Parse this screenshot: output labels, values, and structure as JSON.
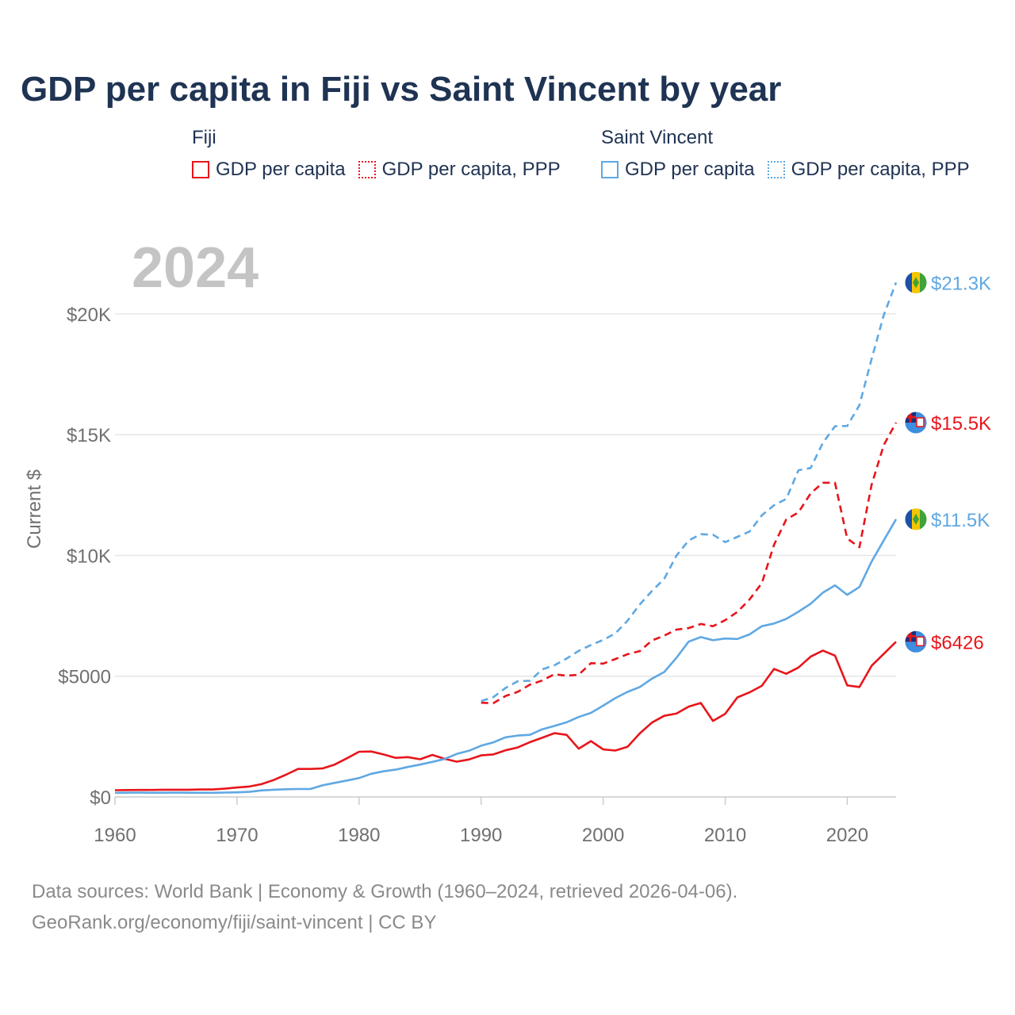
{
  "title": "GDP per capita in Fiji vs Saint Vincent by year",
  "legend": {
    "fiji": {
      "heading": "Fiji",
      "solid": "GDP per capita",
      "dashed": "GDP per capita, PPP"
    },
    "sv": {
      "heading": "Saint Vincent",
      "solid": "GDP per capita",
      "dashed": "GDP per capita, PPP"
    }
  },
  "colors": {
    "fiji": "#e8151b",
    "sv": "#5fa8e3",
    "grid": "#e6e6e6",
    "axis": "#cccccc",
    "tick": "#707070",
    "year": "#c4c4c4"
  },
  "source": {
    "line1": "Data sources: World Bank | Economy & Growth (1960–2024, retrieved 2026-04-06).",
    "line2": "GeoRank.org/economy/fiji/saint-vincent | CC BY"
  },
  "chart_data": {
    "type": "line",
    "title": "GDP per capita in Fiji vs Saint Vincent by year",
    "ylabel": "Current $",
    "xlabel": "",
    "year_label": "2024",
    "xlim": [
      1960,
      2024
    ],
    "ylim": [
      0,
      22000
    ],
    "xticks": [
      {
        "value": 1960,
        "label": "1960"
      },
      {
        "value": 1970,
        "label": "1970"
      },
      {
        "value": 1980,
        "label": "1980"
      },
      {
        "value": 1990,
        "label": "1990"
      },
      {
        "value": 2000,
        "label": "2000"
      },
      {
        "value": 2010,
        "label": "2010"
      },
      {
        "value": 2020,
        "label": "2020"
      }
    ],
    "yticks": [
      {
        "value": 0,
        "label": "$0"
      },
      {
        "value": 5000,
        "label": "$5000"
      },
      {
        "value": 10000,
        "label": "$10K"
      },
      {
        "value": 15000,
        "label": "$15K"
      },
      {
        "value": 20000,
        "label": "$20K"
      }
    ],
    "series": [
      {
        "id": "fiji-gdp",
        "name": "Fiji GDP per capita",
        "country": "fiji",
        "style": "solid",
        "end_label": "$6426",
        "end_value": 6426,
        "flag": "fiji",
        "x": [
          1960,
          1961,
          1962,
          1963,
          1964,
          1965,
          1966,
          1967,
          1968,
          1969,
          1970,
          1971,
          1972,
          1973,
          1974,
          1975,
          1976,
          1977,
          1978,
          1979,
          1980,
          1981,
          1982,
          1983,
          1984,
          1985,
          1986,
          1987,
          1988,
          1989,
          1990,
          1991,
          1992,
          1993,
          1994,
          1995,
          1996,
          1997,
          1998,
          1999,
          2000,
          2001,
          2002,
          2003,
          2004,
          2005,
          2006,
          2007,
          2008,
          2009,
          2010,
          2011,
          2012,
          2013,
          2014,
          2015,
          2016,
          2017,
          2018,
          2019,
          2020,
          2021,
          2022,
          2023,
          2024
        ],
        "y": [
          280,
          285,
          290,
          290,
          300,
          300,
          300,
          310,
          310,
          340,
          390,
          430,
          530,
          700,
          920,
          1160,
          1160,
          1180,
          1340,
          1600,
          1870,
          1880,
          1760,
          1620,
          1650,
          1560,
          1740,
          1580,
          1460,
          1550,
          1720,
          1760,
          1930,
          2050,
          2270,
          2450,
          2640,
          2570,
          2000,
          2310,
          1970,
          1920,
          2080,
          2630,
          3080,
          3360,
          3450,
          3740,
          3890,
          3150,
          3440,
          4120,
          4330,
          4600,
          5300,
          5100,
          5360,
          5810,
          6060,
          5850,
          4620,
          4550,
          5430,
          5930,
          6426
        ]
      },
      {
        "id": "fiji-ppp",
        "name": "Fiji GDP per capita, PPP",
        "country": "fiji",
        "style": "dashed",
        "end_label": "$15.5K",
        "end_value": 15500,
        "flag": "fiji",
        "x": [
          1990,
          1991,
          1992,
          1993,
          1994,
          1995,
          1996,
          1997,
          1998,
          1999,
          2000,
          2001,
          2002,
          2003,
          2004,
          2005,
          2006,
          2007,
          2008,
          2009,
          2010,
          2011,
          2012,
          2013,
          2014,
          2015,
          2016,
          2017,
          2018,
          2019,
          2020,
          2021,
          2022,
          2023,
          2024
        ],
        "y": [
          3900,
          3880,
          4180,
          4350,
          4650,
          4820,
          5080,
          5020,
          5060,
          5540,
          5520,
          5710,
          5910,
          6040,
          6480,
          6680,
          6930,
          6990,
          7160,
          7070,
          7320,
          7660,
          8180,
          8850,
          10440,
          11490,
          11780,
          12570,
          13010,
          13010,
          10700,
          10340,
          12930,
          14580,
          15500
        ]
      },
      {
        "id": "sv-gdp",
        "name": "Saint Vincent GDP per capita",
        "country": "sv",
        "style": "solid",
        "end_label": "$11.5K",
        "end_value": 11500,
        "flag": "sv",
        "x": [
          1960,
          1961,
          1962,
          1963,
          1964,
          1965,
          1966,
          1967,
          1968,
          1969,
          1970,
          1971,
          1972,
          1973,
          1974,
          1975,
          1976,
          1977,
          1978,
          1979,
          1980,
          1981,
          1982,
          1983,
          1984,
          1985,
          1986,
          1987,
          1988,
          1989,
          1990,
          1991,
          1992,
          1993,
          1994,
          1995,
          1996,
          1997,
          1998,
          1999,
          2000,
          2001,
          2002,
          2003,
          2004,
          2005,
          2006,
          2007,
          2008,
          2009,
          2010,
          2011,
          2012,
          2013,
          2014,
          2015,
          2016,
          2017,
          2018,
          2019,
          2020,
          2021,
          2022,
          2023,
          2024
        ],
        "y": [
          170,
          175,
          180,
          170,
          175,
          180,
          175,
          175,
          170,
          180,
          190,
          210,
          270,
          300,
          320,
          330,
          330,
          480,
          580,
          680,
          780,
          960,
          1060,
          1130,
          1240,
          1340,
          1450,
          1570,
          1780,
          1910,
          2120,
          2260,
          2470,
          2540,
          2570,
          2800,
          2940,
          3090,
          3310,
          3480,
          3780,
          4090,
          4350,
          4550,
          4900,
          5170,
          5760,
          6430,
          6620,
          6490,
          6560,
          6540,
          6730,
          7070,
          7180,
          7370,
          7670,
          8000,
          8460,
          8760,
          8370,
          8690,
          9750,
          10630,
          11500
        ]
      },
      {
        "id": "sv-ppp",
        "name": "Saint Vincent GDP per capita, PPP",
        "country": "sv",
        "style": "dashed",
        "end_label": "$21.3K",
        "end_value": 21300,
        "flag": "sv",
        "x": [
          1990,
          1991,
          1992,
          1993,
          1994,
          1995,
          1996,
          1997,
          1998,
          1999,
          2000,
          2001,
          2002,
          2003,
          2004,
          2005,
          2006,
          2007,
          2008,
          2009,
          2010,
          2011,
          2012,
          2013,
          2014,
          2015,
          2016,
          2017,
          2018,
          2019,
          2020,
          2021,
          2022,
          2023,
          2024
        ],
        "y": [
          3970,
          4130,
          4510,
          4790,
          4810,
          5280,
          5450,
          5730,
          6050,
          6290,
          6500,
          6770,
          7300,
          7970,
          8530,
          9030,
          9990,
          10620,
          10880,
          10860,
          10550,
          10770,
          10990,
          11660,
          12080,
          12340,
          13530,
          13620,
          14660,
          15350,
          15360,
          16220,
          18140,
          19960,
          21300
        ]
      }
    ]
  }
}
